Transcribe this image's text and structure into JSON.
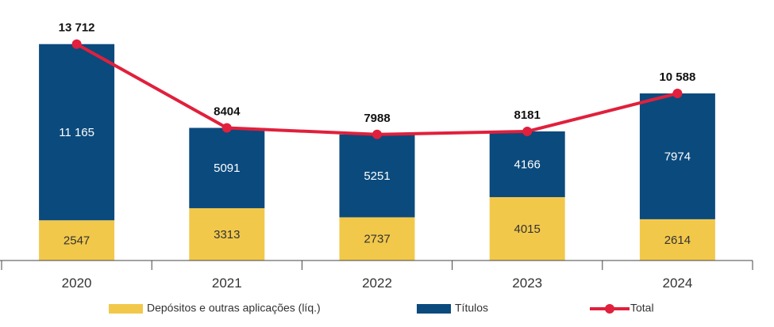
{
  "chart_data": {
    "type": "bar",
    "stacked": true,
    "categories": [
      "2020",
      "2021",
      "2022",
      "2023",
      "2024"
    ],
    "series": [
      {
        "name": "Depósitos e outras aplicações (líq.)",
        "color": "#F2C84B",
        "values": [
          2547,
          3313,
          2737,
          4015,
          2614
        ],
        "value_labels": [
          "2547",
          "3313",
          "2737",
          "4015",
          "2614"
        ],
        "label_color": "#333333"
      },
      {
        "name": "Títulos",
        "color": "#0B4A7D",
        "values": [
          11165,
          5091,
          5251,
          4166,
          7974
        ],
        "value_labels": [
          "11 165",
          "5091",
          "5251",
          "4166",
          "7974"
        ],
        "label_color": "#ffffff"
      }
    ],
    "line": {
      "name": "Total",
      "color": "#E0203C",
      "values": [
        13712,
        8404,
        7988,
        8181,
        10588
      ],
      "value_labels": [
        "13 712",
        "8404",
        "7988",
        "8181",
        "10 588"
      ]
    },
    "ylim": [
      0,
      14500
    ],
    "grid": false,
    "legend_position": "bottom"
  }
}
